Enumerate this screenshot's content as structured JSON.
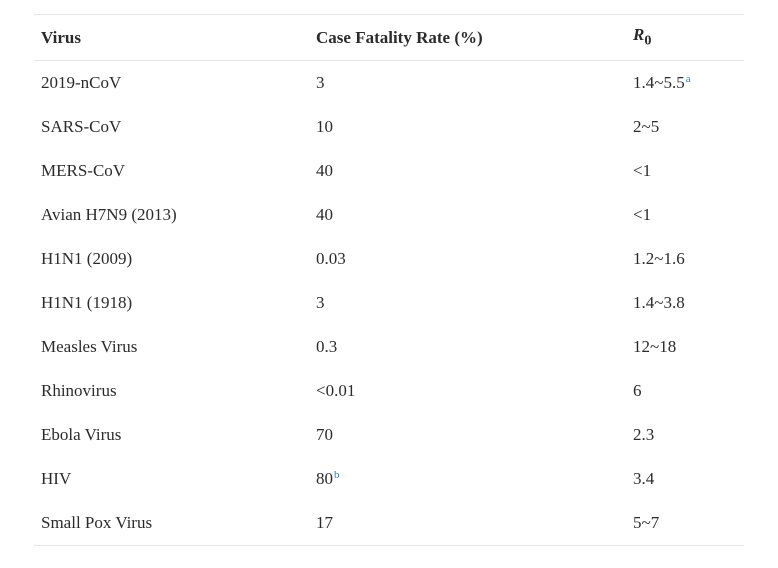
{
  "table": {
    "headers": {
      "virus": "Virus",
      "cfr": "Case Fatality Rate (%)",
      "r0_main": "R",
      "r0_sub": "0"
    },
    "rows": [
      {
        "virus": "2019-nCoV",
        "cfr": "3",
        "cfr_note": "",
        "r0": "1.4~5.5",
        "r0_note": "a"
      },
      {
        "virus": "SARS-CoV",
        "cfr": "10",
        "cfr_note": "",
        "r0": "2~5",
        "r0_note": ""
      },
      {
        "virus": "MERS-CoV",
        "cfr": "40",
        "cfr_note": "",
        "r0": "<1",
        "r0_note": ""
      },
      {
        "virus": "Avian H7N9 (2013)",
        "cfr": "40",
        "cfr_note": "",
        "r0": "<1",
        "r0_note": ""
      },
      {
        "virus": "H1N1 (2009)",
        "cfr": "0.03",
        "cfr_note": "",
        "r0": "1.2~1.6",
        "r0_note": ""
      },
      {
        "virus": "H1N1 (1918)",
        "cfr": "3",
        "cfr_note": "",
        "r0": "1.4~3.8",
        "r0_note": ""
      },
      {
        "virus": "Measles Virus",
        "cfr": "0.3",
        "cfr_note": "",
        "r0": "12~18",
        "r0_note": ""
      },
      {
        "virus": "Rhinovirus",
        "cfr": "<0.01",
        "cfr_note": "",
        "r0": "6",
        "r0_note": ""
      },
      {
        "virus": "Ebola Virus",
        "cfr": "70",
        "cfr_note": "",
        "r0": "2.3",
        "r0_note": ""
      },
      {
        "virus": "HIV",
        "cfr": "80",
        "cfr_note": "b",
        "r0": "3.4",
        "r0_note": ""
      },
      {
        "virus": "Small Pox Virus",
        "cfr": "17",
        "cfr_note": "",
        "r0": "5~7",
        "r0_note": ""
      }
    ]
  },
  "colors": {
    "text": "#2b2b2b",
    "footnote_link": "#3c7ab8",
    "rule": "#e6e6e6"
  }
}
